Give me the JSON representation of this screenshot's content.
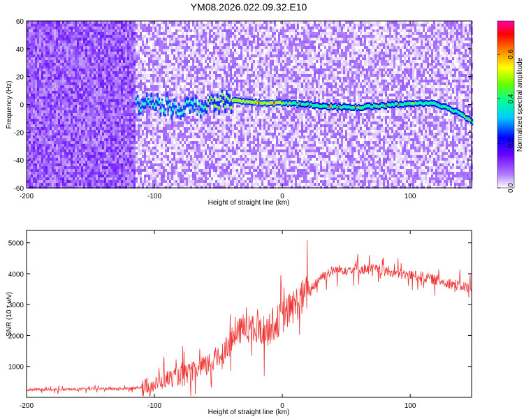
{
  "title": "YM08.2026.022.09.32.E10",
  "colors": {
    "snr_line": "#ee3333",
    "colormap": [
      "#ffffff",
      "#8f00ff",
      "#0000ff",
      "#00ffff",
      "#00ff66",
      "#ccff00",
      "#ffcc00",
      "#ff0000",
      "#ff00ff"
    ]
  },
  "chart_data": [
    {
      "type": "heatmap",
      "title": "",
      "xlabel": "Height of straight line (km)",
      "ylabel": "Frequency (Hz)",
      "xlim": [
        -200,
        148
      ],
      "ylim": [
        -60,
        60
      ],
      "xticks": [
        -200,
        -100,
        0,
        100
      ],
      "yticks": [
        -60,
        -40,
        -20,
        0,
        20,
        40,
        60
      ],
      "colorbar": {
        "label": "Normalized spectral amplitude",
        "range": [
          0.0,
          0.75
        ],
        "ticks": [
          0.0,
          0.2,
          0.4,
          0.6
        ]
      },
      "signal_trace": {
        "x": [
          -115,
          -100,
          -80,
          -60,
          -45,
          -30,
          -15,
          0,
          15,
          30,
          45,
          60,
          75,
          90,
          105,
          118,
          130,
          140,
          148
        ],
        "y": [
          0,
          0,
          -2,
          -1,
          3,
          2,
          1,
          1,
          0,
          -1,
          -2,
          -2,
          -1,
          0,
          1,
          1,
          -3,
          -7,
          -13
        ]
      },
      "noise_band": {
        "x_range": [
          -200,
          -115
        ],
        "description_levels": {
          "strong_noise_until_x": -115
        }
      }
    },
    {
      "type": "line",
      "title": "",
      "xlabel": "Height of straight line (km)",
      "ylabel": "SNR (10 * v/v)",
      "xlim": [
        -200,
        148
      ],
      "ylim": [
        0,
        5400
      ],
      "xticks": [
        -200,
        -100,
        0,
        100
      ],
      "yticks": [
        1000,
        2000,
        3000,
        4000,
        5000
      ],
      "series": [
        {
          "x": [
            -200,
            -180,
            -160,
            -140,
            -120,
            -100,
            -90,
            -80,
            -70,
            -60,
            -50,
            -40,
            -30,
            -20,
            -10,
            0,
            10,
            20,
            30,
            40,
            50,
            60,
            70,
            80,
            90,
            100,
            110,
            120,
            130,
            140,
            148
          ],
          "values": [
            250,
            250,
            260,
            280,
            280,
            400,
            600,
            700,
            800,
            1000,
            1300,
            1800,
            2300,
            2100,
            2200,
            2600,
            3000,
            3400,
            3900,
            4100,
            4150,
            4150,
            4150,
            4100,
            4000,
            3950,
            3900,
            3800,
            3700,
            3600,
            3550
          ]
        }
      ]
    }
  ]
}
